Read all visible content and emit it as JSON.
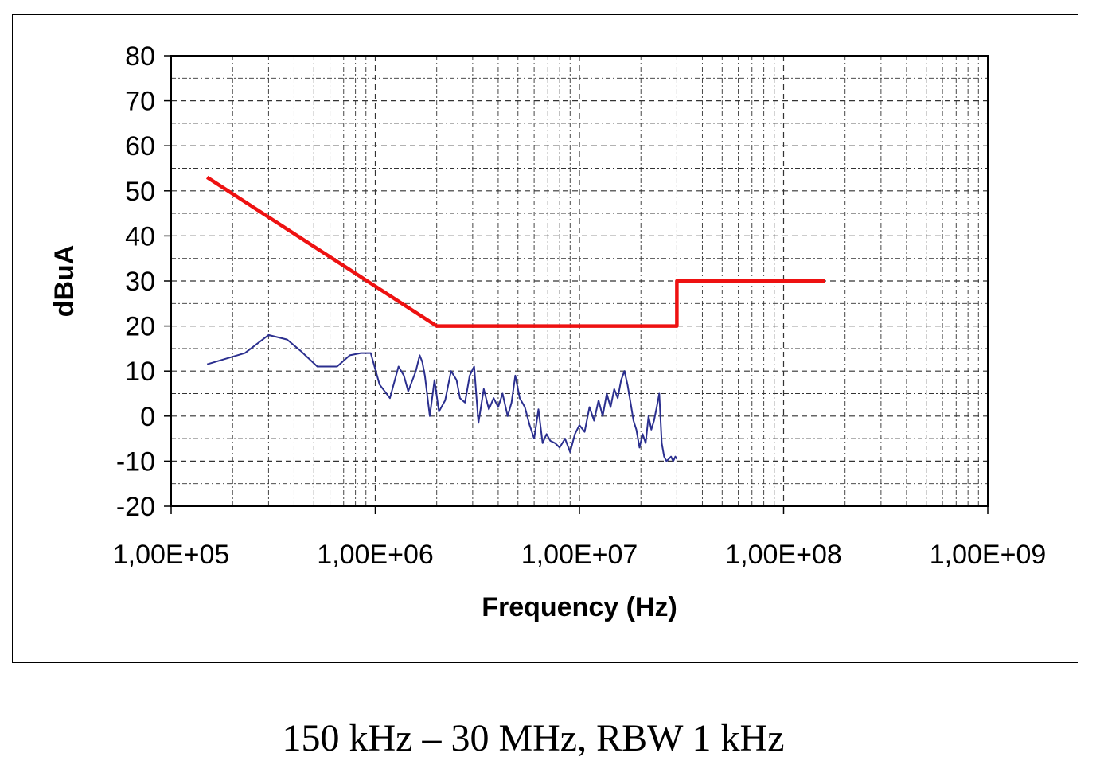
{
  "caption": "150 kHz – 30 MHz, RBW 1 kHz",
  "chart_data": {
    "type": "line",
    "title": "",
    "xlabel": "Frequency (Hz)",
    "ylabel": "dBuA",
    "x_scale": "log",
    "xlim": [
      100000,
      1000000000
    ],
    "ylim": [
      -20,
      80
    ],
    "x_ticks": [
      100000,
      1000000,
      10000000,
      100000000,
      1000000000
    ],
    "x_tick_labels": [
      "1,00E+05",
      "1,00E+06",
      "1,00E+07",
      "1,00E+08",
      "1,00E+09"
    ],
    "y_ticks": [
      -20,
      -10,
      0,
      10,
      20,
      30,
      40,
      50,
      60,
      70,
      80
    ],
    "y_tick_labels": [
      "-20",
      "-10",
      "0",
      "10",
      "20",
      "30",
      "40",
      "50",
      "60",
      "70",
      "80"
    ],
    "grid": true,
    "legend": "none",
    "series": [
      {
        "color": "#ee1111",
        "x": [
          150000,
          2000000,
          30000000,
          30000000,
          160000000
        ],
        "y": [
          53,
          20,
          20,
          30,
          30
        ]
      },
      {
        "color": "#2b2f8f",
        "x": [
          150000,
          230000,
          300000,
          370000,
          430000,
          520000,
          650000,
          750000,
          850000,
          950000,
          1050000,
          1180000,
          1300000,
          1380000,
          1450000,
          1580000,
          1650000,
          1700000,
          1750000,
          1850000,
          1950000,
          2050000,
          2200000,
          2350000,
          2500000,
          2600000,
          2750000,
          2900000,
          3050000,
          3200000,
          3400000,
          3600000,
          3800000,
          4000000,
          4200000,
          4450000,
          4650000,
          4850000,
          5100000,
          5400000,
          5700000,
          6000000,
          6300000,
          6600000,
          6900000,
          7200000,
          7600000,
          8000000,
          8500000,
          9000000,
          9500000,
          10000000,
          10600000,
          11200000,
          11800000,
          12400000,
          13000000,
          13600000,
          14200000,
          14800000,
          15400000,
          16000000,
          16600000,
          17200000,
          17800000,
          18400000,
          19000000,
          19700000,
          20400000,
          21100000,
          21800000,
          22500000,
          23200000,
          23900000,
          24600000,
          25300000,
          26000000,
          26700000,
          27400000,
          28100000,
          28800000,
          29500000,
          30000000
        ],
        "y": [
          11.5,
          14,
          18,
          17,
          14.5,
          11,
          11,
          13.5,
          14,
          14,
          7,
          4,
          11,
          9,
          5.5,
          10,
          13.5,
          12,
          9,
          0,
          8,
          1,
          3.5,
          10,
          8,
          4,
          3,
          9,
          11,
          -1.5,
          6,
          1.5,
          4,
          2,
          5,
          0,
          3,
          9,
          4,
          2,
          -2,
          -5,
          1.5,
          -6,
          -4,
          -5.5,
          -6,
          -7,
          -5,
          -8,
          -4,
          -2,
          -3.5,
          2,
          -1,
          3.5,
          0,
          5,
          2,
          6,
          4,
          8,
          10,
          7,
          3,
          -1,
          -3,
          -7,
          -4,
          -6,
          0,
          -3,
          -1,
          2,
          5,
          -6,
          -9,
          -10,
          -9.5,
          -9,
          -10,
          -9,
          -9.5
        ]
      }
    ]
  }
}
